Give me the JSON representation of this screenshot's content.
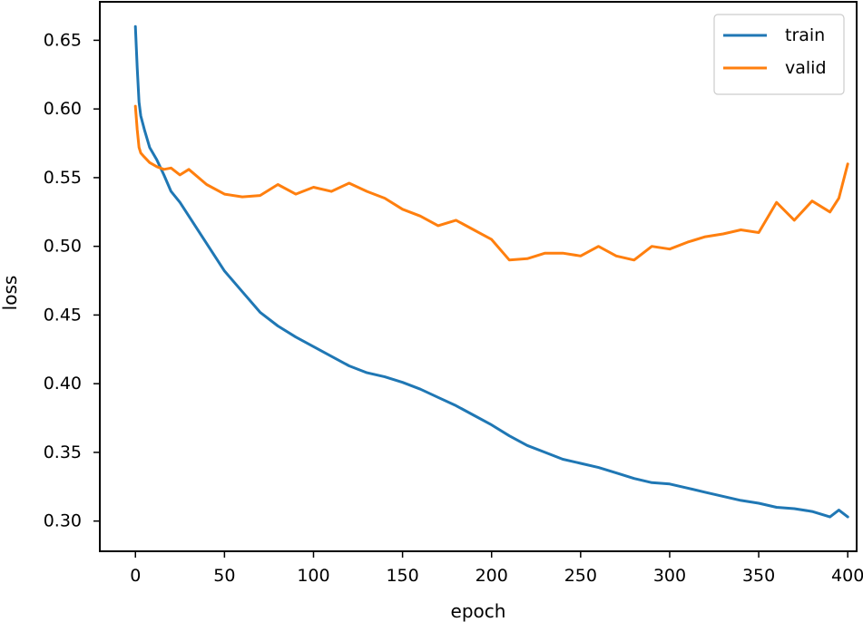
{
  "chart_data": {
    "type": "line",
    "xlabel": "epoch",
    "ylabel": "loss",
    "xlim": [
      -20,
      405
    ],
    "ylim": [
      0.278,
      0.678
    ],
    "xticks": [
      0,
      50,
      100,
      150,
      200,
      250,
      300,
      350,
      400
    ],
    "yticks": [
      0.3,
      0.35,
      0.4,
      0.45,
      0.5,
      0.55,
      0.6,
      0.65
    ],
    "grid": false,
    "legend_position": "top-right",
    "x": [
      0,
      1,
      2,
      3,
      5,
      8,
      12,
      16,
      20,
      25,
      30,
      40,
      50,
      60,
      70,
      80,
      90,
      100,
      110,
      120,
      130,
      140,
      150,
      160,
      170,
      180,
      190,
      200,
      210,
      220,
      230,
      240,
      250,
      260,
      270,
      280,
      290,
      300,
      310,
      320,
      330,
      340,
      350,
      360,
      370,
      380,
      390,
      395,
      400
    ],
    "series": [
      {
        "name": "train",
        "color": "#1f77b4",
        "values": [
          0.66,
          0.63,
          0.605,
          0.595,
          0.585,
          0.572,
          0.563,
          0.552,
          0.54,
          0.532,
          0.522,
          0.502,
          0.482,
          0.467,
          0.452,
          0.442,
          0.434,
          0.427,
          0.42,
          0.413,
          0.408,
          0.405,
          0.401,
          0.396,
          0.39,
          0.384,
          0.377,
          0.37,
          0.362,
          0.355,
          0.35,
          0.345,
          0.342,
          0.339,
          0.335,
          0.331,
          0.328,
          0.327,
          0.324,
          0.321,
          0.318,
          0.315,
          0.313,
          0.31,
          0.309,
          0.307,
          0.303,
          0.308,
          0.303
        ]
      },
      {
        "name": "valid",
        "color": "#ff7f0e",
        "values": [
          0.602,
          0.585,
          0.572,
          0.568,
          0.565,
          0.561,
          0.558,
          0.556,
          0.557,
          0.552,
          0.556,
          0.545,
          0.538,
          0.536,
          0.537,
          0.545,
          0.538,
          0.543,
          0.54,
          0.546,
          0.54,
          0.535,
          0.527,
          0.522,
          0.515,
          0.519,
          0.512,
          0.505,
          0.49,
          0.491,
          0.495,
          0.495,
          0.493,
          0.5,
          0.493,
          0.49,
          0.5,
          0.498,
          0.503,
          0.507,
          0.509,
          0.512,
          0.51,
          0.532,
          0.519,
          0.533,
          0.525,
          0.535,
          0.56
        ]
      }
    ]
  }
}
